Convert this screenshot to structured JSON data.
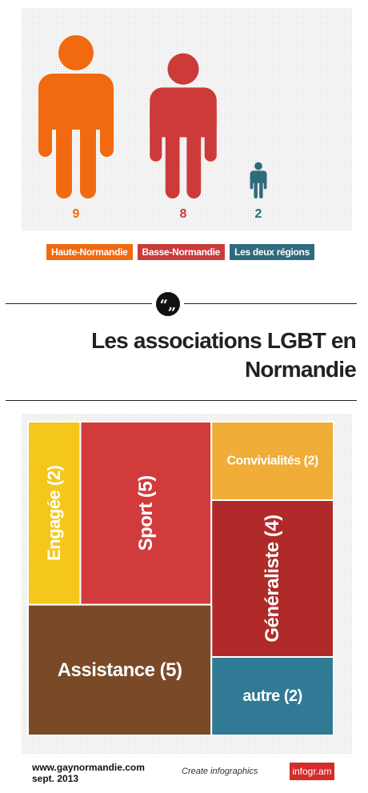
{
  "chart_data": [
    {
      "type": "pictograph",
      "categories": [
        "Haute-Normandie",
        "Basse-Normandie",
        "Les deux régions"
      ],
      "values": [
        9,
        8,
        2
      ],
      "colors": [
        "#f26a10",
        "#cc3a3a",
        "#2e6b7c"
      ],
      "ylim": [
        0,
        9
      ]
    },
    {
      "type": "treemap",
      "items": [
        {
          "name": "Engagée",
          "value": 2,
          "label": "Engagée (2)",
          "color": "#f5c71a"
        },
        {
          "name": "Sport",
          "value": 5,
          "label": "Sport (5)",
          "color": "#d23b3b"
        },
        {
          "name": "Convivialités",
          "value": 2,
          "label": "Convivialités (2)",
          "color": "#f0ad37"
        },
        {
          "name": "Généraliste",
          "value": 4,
          "label": "Généraliste (4)",
          "color": "#b02a2a"
        },
        {
          "name": "Assistance",
          "value": 5,
          "label": "Assistance (5)",
          "color": "#7a4a28"
        },
        {
          "name": "autre",
          "value": 2,
          "label": "autre (2)",
          "color": "#307a95"
        }
      ]
    }
  ],
  "title": "Les associations LGBT en Normandie",
  "quote_symbol": "“„",
  "footer": {
    "site": "www.gaynormandie.com",
    "date": "sept. 2013",
    "create": "Create infographics",
    "brand": "infogr.am"
  },
  "colors": {
    "text": "#222222",
    "brand_red": "#d42b2b"
  }
}
